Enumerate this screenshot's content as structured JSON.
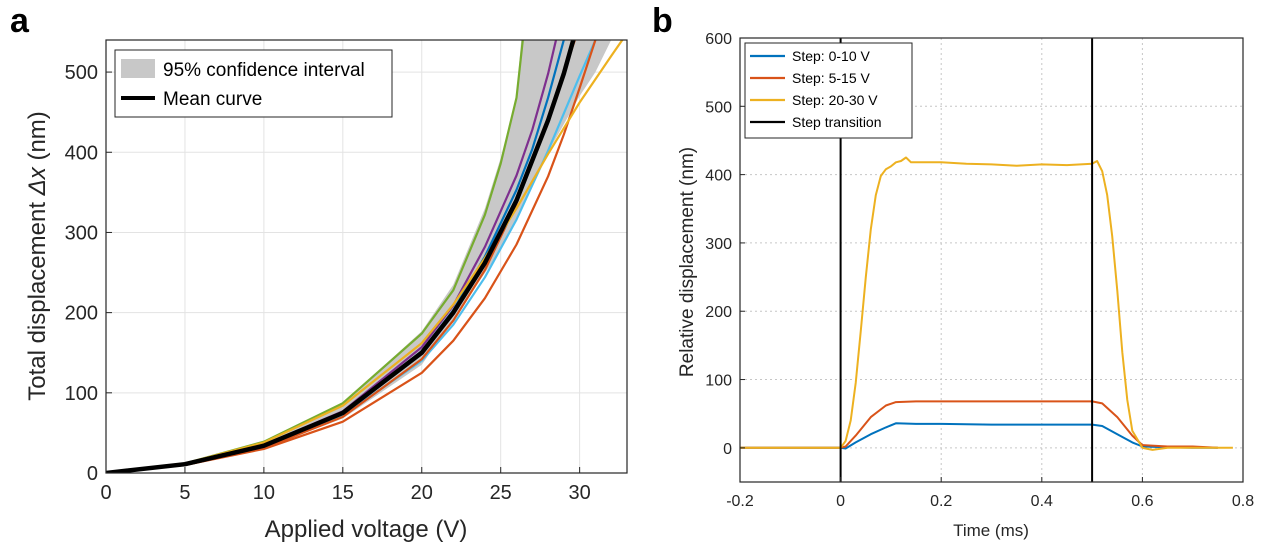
{
  "panel_a": {
    "label": "a",
    "chart_data": {
      "type": "line",
      "xlabel": "Applied voltage (V)",
      "ylabel_text": "Total displacement",
      "ylabel_symbol": "Δx",
      "ylabel_unit": "(nm)",
      "xlim": [
        0,
        33
      ],
      "ylim": [
        0,
        540
      ],
      "xticks": [
        0,
        5,
        10,
        15,
        20,
        25,
        30
      ],
      "yticks": [
        0,
        100,
        200,
        300,
        400,
        500
      ],
      "grid": true,
      "legend_placement": "top-left",
      "legend": [
        "95% confidence interval",
        "Mean curve"
      ],
      "band": {
        "name": "95% confidence interval",
        "color": "#c8c8c8",
        "lower": [
          [
            0,
            0
          ],
          [
            5,
            10
          ],
          [
            10,
            31
          ],
          [
            15,
            68
          ],
          [
            20,
            135
          ],
          [
            25,
            278
          ],
          [
            28,
            400
          ],
          [
            30,
            470
          ],
          [
            31,
            500
          ],
          [
            32,
            540
          ]
        ],
        "upper": [
          [
            0,
            0
          ],
          [
            5,
            12
          ],
          [
            10,
            38
          ],
          [
            15,
            87
          ],
          [
            20,
            177
          ],
          [
            22,
            235
          ],
          [
            24,
            330
          ],
          [
            25,
            393
          ],
          [
            26,
            470
          ],
          [
            26.3,
            540
          ]
        ]
      },
      "mean": {
        "name": "Mean curve",
        "color": "#000000",
        "points": [
          [
            0,
            0
          ],
          [
            5,
            11
          ],
          [
            10,
            34
          ],
          [
            15,
            75
          ],
          [
            20,
            150
          ],
          [
            22,
            200
          ],
          [
            24,
            262
          ],
          [
            26,
            340
          ],
          [
            27,
            390
          ],
          [
            28,
            440
          ],
          [
            29,
            498
          ],
          [
            29.6,
            540
          ]
        ]
      },
      "series": [
        {
          "color": "#77ac30",
          "points": [
            [
              0,
              0
            ],
            [
              5,
              12
            ],
            [
              10,
              39
            ],
            [
              15,
              87
            ],
            [
              20,
              174
            ],
            [
              22,
              228
            ],
            [
              24,
              322
            ],
            [
              25,
              386
            ],
            [
              26,
              468
            ],
            [
              26.4,
              540
            ]
          ]
        },
        {
          "color": "#7e2f8e",
          "points": [
            [
              0,
              0
            ],
            [
              5,
              11
            ],
            [
              10,
              35
            ],
            [
              15,
              77
            ],
            [
              20,
              157
            ],
            [
              22,
              209
            ],
            [
              24,
              282
            ],
            [
              26,
              371
            ],
            [
              27,
              428
            ],
            [
              28,
              498
            ],
            [
              28.5,
              540
            ]
          ]
        },
        {
          "color": "#0072bd",
          "points": [
            [
              0,
              0
            ],
            [
              5,
              11
            ],
            [
              10,
              34
            ],
            [
              15,
              75
            ],
            [
              20,
              152
            ],
            [
              22,
              203
            ],
            [
              24,
              270
            ],
            [
              26,
              353
            ],
            [
              27,
              404
            ],
            [
              28,
              468
            ],
            [
              29,
              540
            ]
          ]
        },
        {
          "color": "#4dbeee",
          "points": [
            [
              0,
              0
            ],
            [
              5,
              11
            ],
            [
              10,
              33
            ],
            [
              15,
              72
            ],
            [
              20,
              140
            ],
            [
              22,
              185
            ],
            [
              24,
              244
            ],
            [
              26,
              316
            ],
            [
              28,
              402
            ],
            [
              30,
              495
            ],
            [
              31,
              540
            ]
          ]
        },
        {
          "color": "#d95319",
          "points": [
            [
              0,
              0
            ],
            [
              5,
              10
            ],
            [
              10,
              30
            ],
            [
              15,
              64
            ],
            [
              20,
              125
            ],
            [
              22,
              165
            ],
            [
              24,
              218
            ],
            [
              26,
              285
            ],
            [
              28,
              370
            ],
            [
              29,
              422
            ],
            [
              30,
              480
            ],
            [
              31,
              540
            ]
          ]
        },
        {
          "color": "#d95319",
          "points": [
            [
              0,
              0
            ],
            [
              5,
              10
            ],
            [
              10,
              31
            ],
            [
              15,
              70
            ],
            [
              20,
              142
            ],
            [
              22,
              190
            ],
            [
              24,
              253
            ],
            [
              26,
              336
            ],
            [
              28,
              443
            ],
            [
              29,
              500
            ],
            [
              29.7,
              540
            ]
          ]
        },
        {
          "color": "#edb120",
          "points": [
            [
              0,
              0
            ],
            [
              5,
              12
            ],
            [
              10,
              38
            ],
            [
              15,
              84
            ],
            [
              20,
              162
            ],
            [
              22,
              210
            ],
            [
              24,
              268
            ],
            [
              26,
              330
            ],
            [
              28,
              398
            ],
            [
              30,
              462
            ],
            [
              32,
              520
            ],
            [
              32.7,
              540
            ]
          ]
        }
      ]
    }
  },
  "panel_b": {
    "label": "b",
    "chart_data": {
      "type": "line",
      "xlabel": "Time (ms)",
      "ylabel": "Relative displacement (nm)",
      "xlim": [
        -0.2,
        0.8
      ],
      "ylim": [
        -50,
        600
      ],
      "xticks": [
        -0.2,
        0,
        0.2,
        0.4,
        0.6,
        0.8
      ],
      "xtick_labels": [
        "-0.2",
        "0",
        "0.2",
        "0.4",
        "0.6",
        "0.8"
      ],
      "yticks": [
        0,
        100,
        200,
        300,
        400,
        500,
        600
      ],
      "grid": true,
      "legend_placement": "top-left",
      "step_transitions": {
        "name": "Step transition",
        "color": "#000000",
        "x": [
          0,
          0.5
        ]
      },
      "series": [
        {
          "name": "Step: 0-10 V",
          "color": "#0072bd",
          "points": [
            [
              -0.2,
              0
            ],
            [
              0,
              0
            ],
            [
              0.01,
              -1
            ],
            [
              0.03,
              8
            ],
            [
              0.06,
              20
            ],
            [
              0.09,
              30
            ],
            [
              0.11,
              36
            ],
            [
              0.15,
              35
            ],
            [
              0.2,
              35
            ],
            [
              0.3,
              34
            ],
            [
              0.4,
              34
            ],
            [
              0.5,
              34
            ],
            [
              0.52,
              32
            ],
            [
              0.55,
              20
            ],
            [
              0.58,
              8
            ],
            [
              0.6,
              2
            ],
            [
              0.65,
              1
            ],
            [
              0.7,
              0
            ],
            [
              0.75,
              0
            ]
          ]
        },
        {
          "name": "Step: 5-15 V",
          "color": "#d95319",
          "points": [
            [
              -0.2,
              0
            ],
            [
              0,
              0
            ],
            [
              0.01,
              2
            ],
            [
              0.03,
              18
            ],
            [
              0.06,
              45
            ],
            [
              0.09,
              62
            ],
            [
              0.11,
              67
            ],
            [
              0.15,
              68
            ],
            [
              0.2,
              68
            ],
            [
              0.3,
              68
            ],
            [
              0.4,
              68
            ],
            [
              0.5,
              68
            ],
            [
              0.52,
              65
            ],
            [
              0.55,
              45
            ],
            [
              0.58,
              18
            ],
            [
              0.6,
              4
            ],
            [
              0.65,
              2
            ],
            [
              0.7,
              2
            ],
            [
              0.75,
              0
            ]
          ]
        },
        {
          "name": "Step: 20-30 V",
          "color": "#edb120",
          "points": [
            [
              -0.2,
              0
            ],
            [
              0,
              0
            ],
            [
              0.01,
              10
            ],
            [
              0.02,
              40
            ],
            [
              0.03,
              95
            ],
            [
              0.04,
              170
            ],
            [
              0.05,
              250
            ],
            [
              0.06,
              320
            ],
            [
              0.07,
              370
            ],
            [
              0.08,
              398
            ],
            [
              0.09,
              408
            ],
            [
              0.1,
              412
            ],
            [
              0.11,
              418
            ],
            [
              0.12,
              420
            ],
            [
              0.13,
              425
            ],
            [
              0.14,
              418
            ],
            [
              0.2,
              418
            ],
            [
              0.25,
              416
            ],
            [
              0.3,
              415
            ],
            [
              0.35,
              413
            ],
            [
              0.4,
              415
            ],
            [
              0.45,
              414
            ],
            [
              0.5,
              416
            ],
            [
              0.51,
              420
            ],
            [
              0.52,
              405
            ],
            [
              0.53,
              370
            ],
            [
              0.54,
              310
            ],
            [
              0.55,
              230
            ],
            [
              0.56,
              140
            ],
            [
              0.57,
              70
            ],
            [
              0.58,
              25
            ],
            [
              0.6,
              0
            ],
            [
              0.62,
              -3
            ],
            [
              0.65,
              0
            ],
            [
              0.7,
              0
            ],
            [
              0.75,
              0
            ],
            [
              0.78,
              0
            ]
          ]
        }
      ]
    }
  }
}
